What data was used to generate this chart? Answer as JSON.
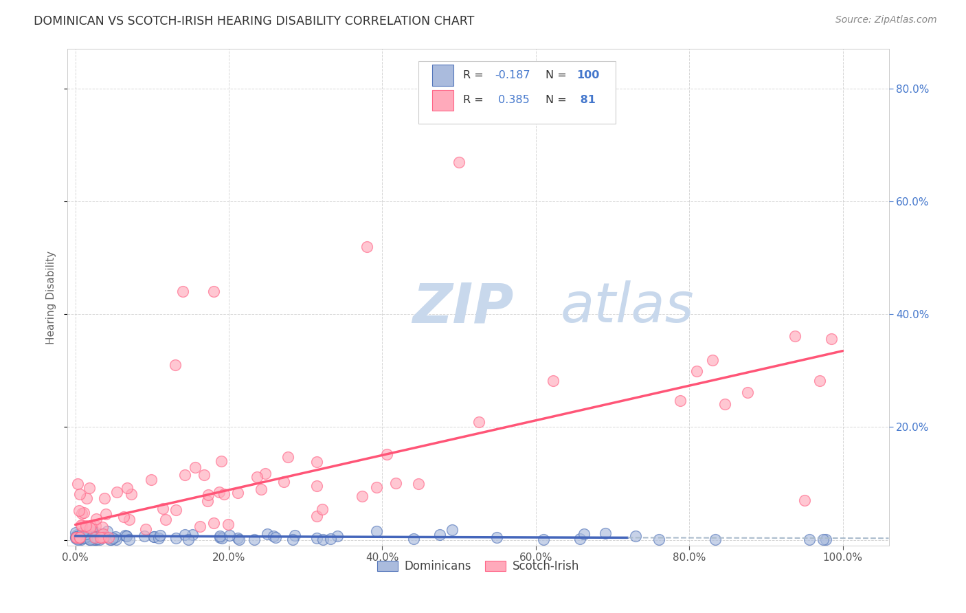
{
  "title": "DOMINICAN VS SCOTCH-IRISH HEARING DISABILITY CORRELATION CHART",
  "source": "Source: ZipAtlas.com",
  "ylabel": "Hearing Disability",
  "xlabel": "",
  "xlim": [
    -0.01,
    1.06
  ],
  "ylim": [
    -0.01,
    0.87
  ],
  "yticks": [
    0.0,
    0.2,
    0.4,
    0.6,
    0.8
  ],
  "xticks": [
    0.0,
    0.2,
    0.4,
    0.6,
    0.8,
    1.0
  ],
  "xtick_labels": [
    "0.0%",
    "20.0%",
    "40.0%",
    "60.0%",
    "80.0%",
    "100.0%"
  ],
  "right_ytick_labels": [
    "20.0%",
    "40.0%",
    "60.0%",
    "80.0%"
  ],
  "blue_fill": "#AABBDD",
  "blue_edge": "#5577BB",
  "pink_fill": "#FFAABB",
  "pink_edge": "#FF6688",
  "blue_line_color": "#4466BB",
  "blue_dash_color": "#AABBCC",
  "pink_line_color": "#FF5577",
  "right_axis_color": "#4477CC",
  "blue_R": "-0.187",
  "blue_N": "100",
  "pink_R": "0.385",
  "pink_N": "81",
  "watermark_zip_color": "#C8D8EC",
  "watermark_atlas_color": "#C8D8EC",
  "legend_edge_color": "#CCCCCC",
  "grid_color": "#CCCCCC",
  "title_color": "#333333",
  "source_color": "#888888",
  "ylabel_color": "#666666",
  "tick_color": "#555555",
  "legend_text_color": "#333333",
  "legend_R_color": "#4477CC",
  "legend_N_color": "#4477CC"
}
